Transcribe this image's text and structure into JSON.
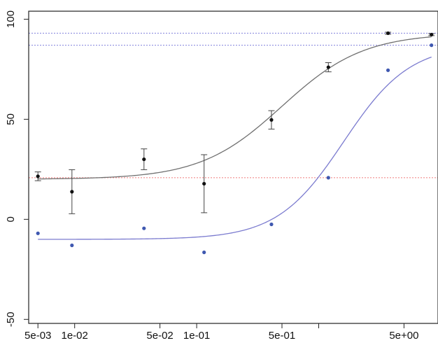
{
  "chart_data": {
    "type": "scatter",
    "title": "",
    "xlabel": "",
    "ylabel": "",
    "x_scale": "log",
    "xlim": [
      0.0042,
      9.5
    ],
    "ylim": [
      -52,
      104
    ],
    "x_ticks": [
      {
        "value": 0.005,
        "label": "5e-03"
      },
      {
        "value": 0.01,
        "label": "1e-02"
      },
      {
        "value": 0.05,
        "label": "5e-02"
      },
      {
        "value": 0.1,
        "label": "1e-01"
      },
      {
        "value": 0.5,
        "label": "5e-01"
      },
      {
        "value": 5,
        "label": "5e+00"
      }
    ],
    "x_minor_ticks": [
      1,
      10
    ],
    "y_ticks": [
      {
        "value": -50,
        "label": "-50"
      },
      {
        "value": 0,
        "label": "0"
      },
      {
        "value": 50,
        "label": "50"
      },
      {
        "value": 100,
        "label": "100"
      }
    ],
    "grid": false,
    "series": [
      {
        "color": "#111111",
        "curve_color": "#707070",
        "x": [
          0.005,
          0.0095,
          0.037,
          0.115,
          0.41,
          1.2,
          3.7,
          8.4
        ],
        "y": [
          21.5,
          13.8,
          30.0,
          17.8,
          49.7,
          76.0,
          93.0,
          92.3
        ],
        "err": [
          2.2,
          11.0,
          5.2,
          14.5,
          4.6,
          2.3,
          0.5,
          0.5
        ],
        "fit": {
          "bottom": 20,
          "top": 93,
          "ec50": 0.5,
          "hill": 1.3
        }
      },
      {
        "color": "#3f58b0",
        "curve_color": "#7b7bcf",
        "x": [
          0.005,
          0.0095,
          0.037,
          0.115,
          0.41,
          1.2,
          3.7,
          8.4
        ],
        "y": [
          -7.0,
          -13.0,
          -4.5,
          -16.5,
          -2.5,
          20.8,
          74.5,
          87.0
        ],
        "fit": {
          "bottom": -10,
          "top": 87.5,
          "ec50": 1.6,
          "hill": 1.6
        }
      }
    ],
    "reference_lines": [
      {
        "y": 93.0,
        "color": "#8f8fe0"
      },
      {
        "y": 87.0,
        "color": "#8f8fe0"
      },
      {
        "y": 20.8,
        "color": "#ef7b7b"
      }
    ]
  }
}
